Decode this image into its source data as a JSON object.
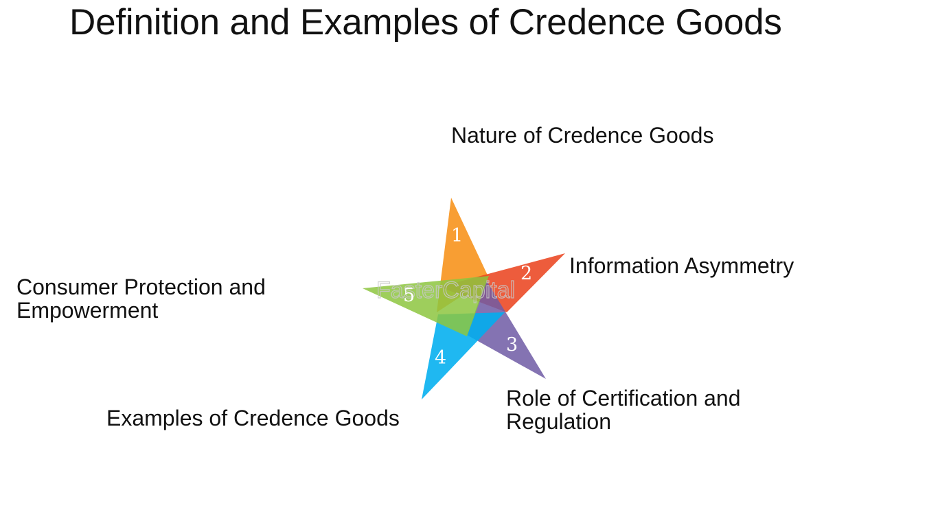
{
  "title": "Definition and Examples of Credence Goods",
  "watermark": "FasterCapital",
  "colors": {
    "point_1": "#f7941d",
    "point_2": "#ea4521",
    "point_3": "#6f5aa5",
    "point_4": "#00aeef",
    "point_5": "#8dc63f"
  },
  "points": [
    {
      "number": "1",
      "label_lines": [
        "Nature of Credence Goods"
      ]
    },
    {
      "number": "2",
      "label_lines": [
        "Information Asymmetry"
      ]
    },
    {
      "number": "3",
      "label_lines": [
        "Role of Certification and",
        "Regulation"
      ]
    },
    {
      "number": "4",
      "label_lines": [
        "Examples of Credence Goods"
      ]
    },
    {
      "number": "5",
      "label_lines": [
        "Consumer Protection and",
        "Empowerment"
      ]
    }
  ]
}
